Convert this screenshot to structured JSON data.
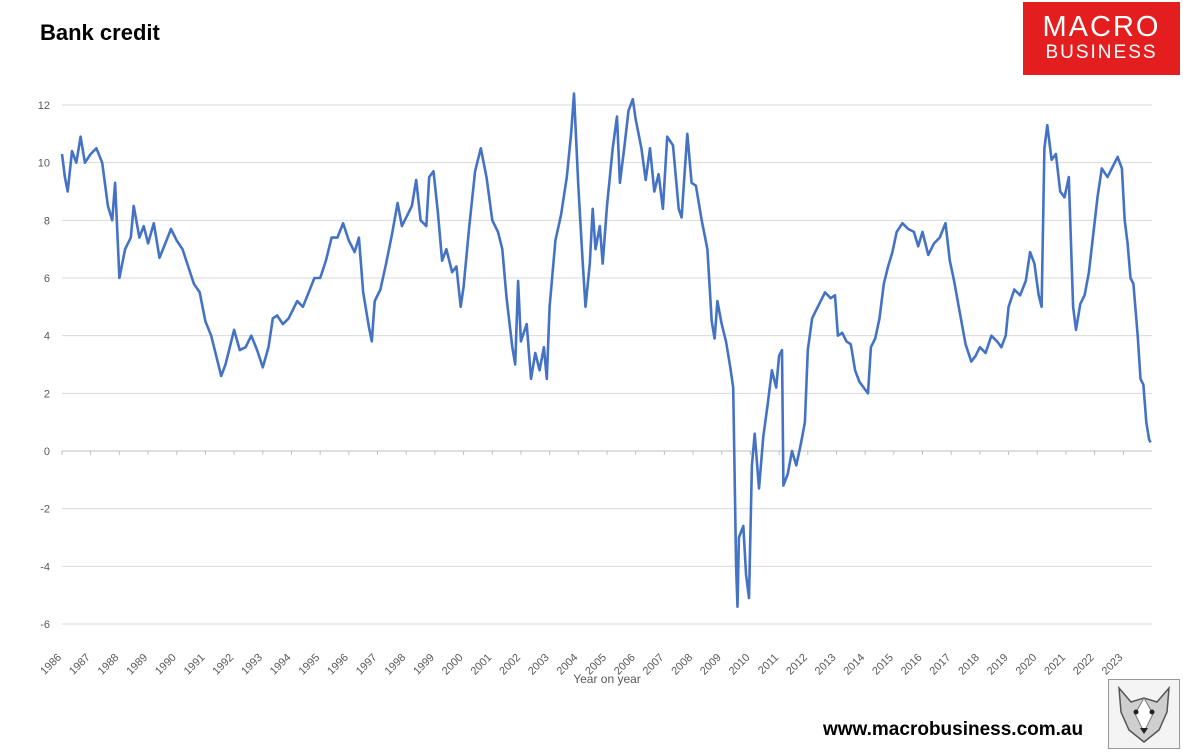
{
  "chart_data": {
    "type": "line",
    "title": "Bank credit",
    "xlabel": "Year on year",
    "ylabel": "",
    "ylim": [
      -6,
      12
    ],
    "yticks": [
      -6,
      -4,
      -2,
      0,
      2,
      4,
      6,
      8,
      10,
      12
    ],
    "xlim": [
      1986,
      2024
    ],
    "xticks": [
      "1986",
      "1987",
      "1988",
      "1989",
      "1990",
      "1991",
      "1992",
      "1993",
      "1994",
      "1995",
      "1996",
      "1997",
      "1998",
      "1999",
      "2000",
      "2001",
      "2002",
      "2003",
      "2004",
      "2005",
      "2006",
      "2007",
      "2008",
      "2009",
      "2010",
      "2011",
      "2012",
      "2013",
      "2014",
      "2015",
      "2016",
      "2017",
      "2018",
      "2019",
      "2020",
      "2021",
      "2022",
      "2023"
    ],
    "grid": "horizontal",
    "legend": "none",
    "series": [
      {
        "color": "#4472c4",
        "points": [
          [
            1986.0,
            10.3
          ],
          [
            1986.1,
            9.5
          ],
          [
            1986.2,
            9.0
          ],
          [
            1986.35,
            10.4
          ],
          [
            1986.5,
            10.0
          ],
          [
            1986.65,
            10.9
          ],
          [
            1986.8,
            10.0
          ],
          [
            1987.0,
            10.3
          ],
          [
            1987.2,
            10.5
          ],
          [
            1987.4,
            10.0
          ],
          [
            1987.6,
            8.5
          ],
          [
            1987.75,
            8.0
          ],
          [
            1987.85,
            9.3
          ],
          [
            1988.0,
            6.0
          ],
          [
            1988.2,
            7.0
          ],
          [
            1988.4,
            7.4
          ],
          [
            1988.5,
            8.5
          ],
          [
            1988.7,
            7.4
          ],
          [
            1988.85,
            7.8
          ],
          [
            1989.0,
            7.2
          ],
          [
            1989.2,
            7.9
          ],
          [
            1989.4,
            6.7
          ],
          [
            1989.6,
            7.2
          ],
          [
            1989.8,
            7.7
          ],
          [
            1990.0,
            7.3
          ],
          [
            1990.2,
            7.0
          ],
          [
            1990.4,
            6.4
          ],
          [
            1990.6,
            5.8
          ],
          [
            1990.8,
            5.5
          ],
          [
            1991.0,
            4.5
          ],
          [
            1991.2,
            4.0
          ],
          [
            1991.4,
            3.2
          ],
          [
            1991.55,
            2.6
          ],
          [
            1991.7,
            3.0
          ],
          [
            1991.85,
            3.6
          ],
          [
            1992.0,
            4.2
          ],
          [
            1992.2,
            3.5
          ],
          [
            1992.4,
            3.6
          ],
          [
            1992.6,
            4.0
          ],
          [
            1992.8,
            3.5
          ],
          [
            1993.0,
            2.9
          ],
          [
            1993.2,
            3.6
          ],
          [
            1993.35,
            4.6
          ],
          [
            1993.5,
            4.7
          ],
          [
            1993.7,
            4.4
          ],
          [
            1993.9,
            4.6
          ],
          [
            1994.0,
            4.8
          ],
          [
            1994.2,
            5.2
          ],
          [
            1994.4,
            5.0
          ],
          [
            1994.6,
            5.5
          ],
          [
            1994.8,
            6.0
          ],
          [
            1995.0,
            6.0
          ],
          [
            1995.2,
            6.6
          ],
          [
            1995.4,
            7.4
          ],
          [
            1995.6,
            7.4
          ],
          [
            1995.8,
            7.9
          ],
          [
            1996.0,
            7.3
          ],
          [
            1996.2,
            6.9
          ],
          [
            1996.35,
            7.4
          ],
          [
            1996.5,
            5.5
          ],
          [
            1996.7,
            4.3
          ],
          [
            1996.8,
            3.8
          ],
          [
            1996.9,
            5.2
          ],
          [
            1997.1,
            5.6
          ],
          [
            1997.3,
            6.5
          ],
          [
            1997.5,
            7.5
          ],
          [
            1997.7,
            8.6
          ],
          [
            1997.85,
            7.8
          ],
          [
            1998.0,
            8.1
          ],
          [
            1998.2,
            8.5
          ],
          [
            1998.35,
            9.4
          ],
          [
            1998.5,
            8.0
          ],
          [
            1998.7,
            7.8
          ],
          [
            1998.8,
            9.5
          ],
          [
            1998.95,
            9.7
          ],
          [
            1999.1,
            8.3
          ],
          [
            1999.25,
            6.6
          ],
          [
            1999.4,
            7.0
          ],
          [
            1999.6,
            6.2
          ],
          [
            1999.75,
            6.4
          ],
          [
            1999.9,
            5.0
          ],
          [
            2000.0,
            5.7
          ],
          [
            2000.2,
            7.8
          ],
          [
            2000.4,
            9.7
          ],
          [
            2000.6,
            10.5
          ],
          [
            2000.8,
            9.5
          ],
          [
            2001.0,
            8.0
          ],
          [
            2001.2,
            7.6
          ],
          [
            2001.35,
            7.0
          ],
          [
            2001.5,
            5.3
          ],
          [
            2001.7,
            3.6
          ],
          [
            2001.8,
            3.0
          ],
          [
            2001.9,
            5.9
          ],
          [
            2002.0,
            3.8
          ],
          [
            2002.2,
            4.4
          ],
          [
            2002.35,
            2.5
          ],
          [
            2002.5,
            3.4
          ],
          [
            2002.65,
            2.8
          ],
          [
            2002.8,
            3.6
          ],
          [
            2002.9,
            2.5
          ],
          [
            2003.0,
            5.0
          ],
          [
            2003.2,
            7.3
          ],
          [
            2003.4,
            8.2
          ],
          [
            2003.6,
            9.5
          ],
          [
            2003.75,
            11.0
          ],
          [
            2003.85,
            12.4
          ],
          [
            2004.0,
            9.2
          ],
          [
            2004.15,
            6.6
          ],
          [
            2004.25,
            5.0
          ],
          [
            2004.4,
            6.5
          ],
          [
            2004.5,
            8.4
          ],
          [
            2004.6,
            7.0
          ],
          [
            2004.75,
            7.8
          ],
          [
            2004.85,
            6.5
          ],
          [
            2005.0,
            8.5
          ],
          [
            2005.2,
            10.5
          ],
          [
            2005.35,
            11.6
          ],
          [
            2005.45,
            9.3
          ],
          [
            2005.6,
            10.5
          ],
          [
            2005.75,
            11.8
          ],
          [
            2005.9,
            12.2
          ],
          [
            2006.0,
            11.5
          ],
          [
            2006.2,
            10.5
          ],
          [
            2006.35,
            9.4
          ],
          [
            2006.5,
            10.5
          ],
          [
            2006.65,
            9.0
          ],
          [
            2006.8,
            9.6
          ],
          [
            2006.95,
            8.4
          ],
          [
            2007.1,
            10.9
          ],
          [
            2007.3,
            10.6
          ],
          [
            2007.5,
            8.4
          ],
          [
            2007.6,
            8.1
          ],
          [
            2007.8,
            11.0
          ],
          [
            2007.95,
            9.3
          ],
          [
            2008.1,
            9.2
          ],
          [
            2008.3,
            8.0
          ],
          [
            2008.5,
            7.0
          ],
          [
            2008.65,
            4.5
          ],
          [
            2008.75,
            3.9
          ],
          [
            2008.85,
            5.2
          ],
          [
            2009.0,
            4.4
          ],
          [
            2009.15,
            3.8
          ],
          [
            2009.3,
            2.9
          ],
          [
            2009.4,
            2.2
          ],
          [
            2009.5,
            -4.0
          ],
          [
            2009.55,
            -5.4
          ],
          [
            2009.6,
            -3.0
          ],
          [
            2009.75,
            -2.6
          ],
          [
            2009.85,
            -4.3
          ],
          [
            2009.95,
            -5.1
          ],
          [
            2010.05,
            -0.5
          ],
          [
            2010.15,
            0.6
          ],
          [
            2010.3,
            -1.3
          ],
          [
            2010.45,
            0.5
          ],
          [
            2010.6,
            1.6
          ],
          [
            2010.75,
            2.8
          ],
          [
            2010.9,
            2.2
          ],
          [
            2011.0,
            3.3
          ],
          [
            2011.1,
            3.5
          ],
          [
            2011.15,
            -1.2
          ],
          [
            2011.3,
            -0.8
          ],
          [
            2011.45,
            0.0
          ],
          [
            2011.6,
            -0.5
          ],
          [
            2011.75,
            0.2
          ],
          [
            2011.9,
            1.0
          ],
          [
            2012.0,
            3.5
          ],
          [
            2012.15,
            4.6
          ],
          [
            2012.3,
            4.9
          ],
          [
            2012.45,
            5.2
          ],
          [
            2012.6,
            5.5
          ],
          [
            2012.8,
            5.3
          ],
          [
            2012.95,
            5.4
          ],
          [
            2013.05,
            4.0
          ],
          [
            2013.2,
            4.1
          ],
          [
            2013.35,
            3.8
          ],
          [
            2013.5,
            3.7
          ],
          [
            2013.65,
            2.8
          ],
          [
            2013.8,
            2.4
          ],
          [
            2013.95,
            2.2
          ],
          [
            2014.1,
            2.0
          ],
          [
            2014.2,
            3.6
          ],
          [
            2014.35,
            3.9
          ],
          [
            2014.5,
            4.6
          ],
          [
            2014.65,
            5.8
          ],
          [
            2014.8,
            6.4
          ],
          [
            2014.95,
            6.9
          ],
          [
            2015.1,
            7.6
          ],
          [
            2015.3,
            7.9
          ],
          [
            2015.5,
            7.7
          ],
          [
            2015.7,
            7.6
          ],
          [
            2015.85,
            7.1
          ],
          [
            2016.0,
            7.6
          ],
          [
            2016.2,
            6.8
          ],
          [
            2016.4,
            7.2
          ],
          [
            2016.6,
            7.4
          ],
          [
            2016.8,
            7.9
          ],
          [
            2016.95,
            6.6
          ],
          [
            2017.1,
            5.9
          ],
          [
            2017.3,
            4.8
          ],
          [
            2017.5,
            3.7
          ],
          [
            2017.7,
            3.1
          ],
          [
            2017.85,
            3.3
          ],
          [
            2018.0,
            3.6
          ],
          [
            2018.2,
            3.4
          ],
          [
            2018.4,
            4.0
          ],
          [
            2018.6,
            3.8
          ],
          [
            2018.75,
            3.6
          ],
          [
            2018.9,
            4.0
          ],
          [
            2019.0,
            5.0
          ],
          [
            2019.2,
            5.6
          ],
          [
            2019.4,
            5.4
          ],
          [
            2019.6,
            5.9
          ],
          [
            2019.75,
            6.9
          ],
          [
            2019.9,
            6.5
          ],
          [
            2020.05,
            5.4
          ],
          [
            2020.15,
            5.0
          ],
          [
            2020.25,
            10.5
          ],
          [
            2020.35,
            11.3
          ],
          [
            2020.5,
            10.1
          ],
          [
            2020.65,
            10.3
          ],
          [
            2020.8,
            9.0
          ],
          [
            2020.95,
            8.8
          ],
          [
            2021.1,
            9.5
          ],
          [
            2021.25,
            5.0
          ],
          [
            2021.35,
            4.2
          ],
          [
            2021.5,
            5.1
          ],
          [
            2021.65,
            5.4
          ],
          [
            2021.8,
            6.2
          ],
          [
            2021.95,
            7.5
          ],
          [
            2022.1,
            8.8
          ],
          [
            2022.25,
            9.8
          ],
          [
            2022.45,
            9.5
          ],
          [
            2022.6,
            9.8
          ],
          [
            2022.8,
            10.2
          ],
          [
            2022.95,
            9.8
          ],
          [
            2023.05,
            8.0
          ],
          [
            2023.15,
            7.2
          ],
          [
            2023.25,
            6.0
          ],
          [
            2023.35,
            5.8
          ],
          [
            2023.5,
            4.0
          ],
          [
            2023.6,
            2.5
          ],
          [
            2023.7,
            2.3
          ],
          [
            2023.8,
            1.0
          ],
          [
            2023.9,
            0.4
          ],
          [
            2023.95,
            0.3
          ]
        ]
      }
    ]
  },
  "logo": {
    "line1": "MACRO",
    "line2": "BUSINESS"
  },
  "footer": {
    "url": "www.macrobusiness.com.au"
  },
  "icons": {
    "logo_image": "wolf-logo-icon"
  }
}
